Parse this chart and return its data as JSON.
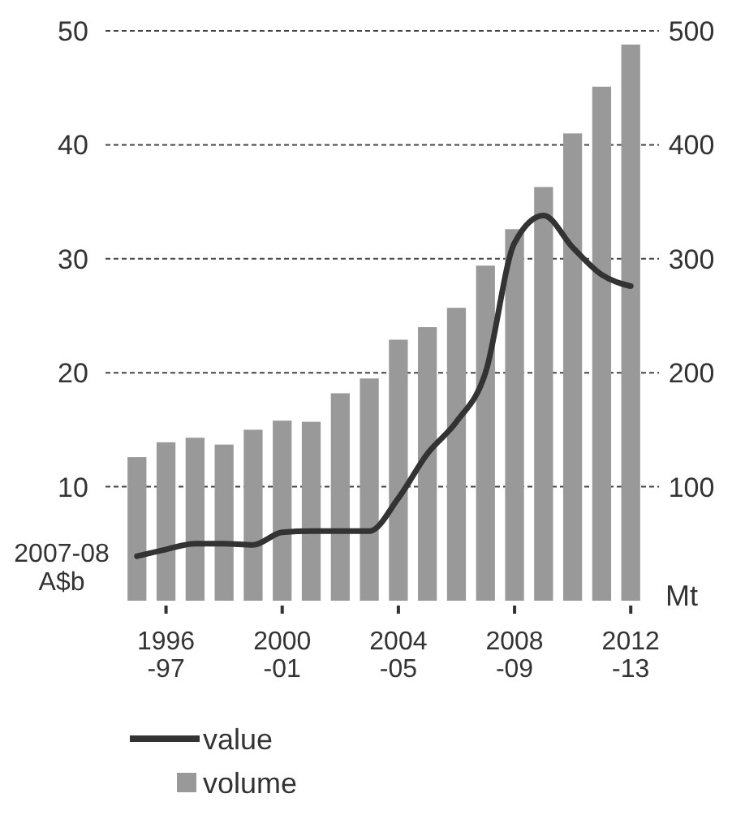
{
  "chart_data": {
    "type": "bar",
    "ylabel": "2007-08 A$b",
    "y2label": "Mt",
    "categories": [
      null,
      "1996-97",
      null,
      null,
      null,
      "2000-01",
      null,
      null,
      null,
      "2004-05",
      null,
      null,
      null,
      "2008-09",
      null,
      null,
      null,
      "2012-13"
    ],
    "series": [
      {
        "name": "value",
        "type": "line",
        "color": "#333333",
        "values": [
          3.9,
          4.5,
          5.0,
          5.0,
          4.9,
          6.0,
          6.1,
          6.1,
          6.1,
          9.0,
          12.9,
          15.7,
          20.0,
          31.4,
          33.8,
          31.0,
          28.6,
          27.6
        ]
      },
      {
        "name": "volume",
        "axis": "y2",
        "color": "#999999",
        "values": [
          126,
          139,
          143,
          137,
          150,
          158,
          157,
          182,
          195,
          229,
          240,
          257,
          294,
          326,
          363,
          410,
          451,
          488
        ]
      }
    ],
    "ylim": [
      0,
      50
    ],
    "yticks": [
      10,
      20,
      30,
      40,
      50
    ],
    "y2lim": [
      0,
      500
    ],
    "y2ticks": [
      100,
      200,
      300,
      400,
      500
    ],
    "grid": "y",
    "legend": "bottom",
    "line_style": "solid"
  }
}
